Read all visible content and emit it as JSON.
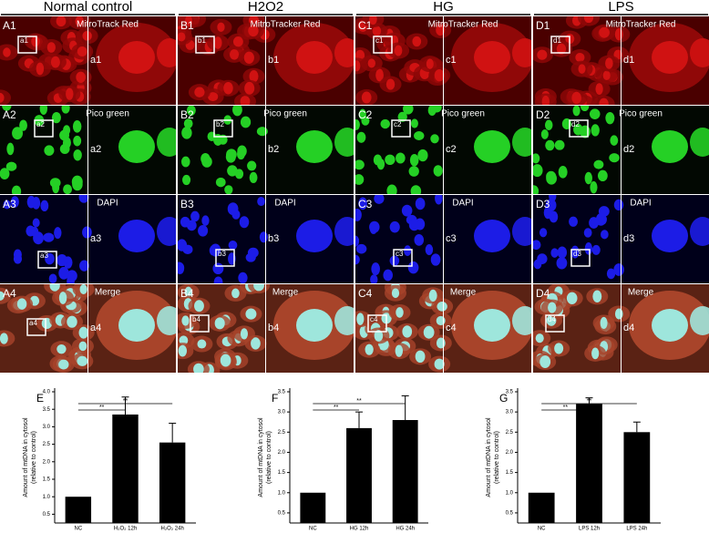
{
  "columns": [
    {
      "title": "Normal control",
      "panels": [
        {
          "label": "A1",
          "stain": "MitroTrack Red",
          "inset": "a1"
        },
        {
          "label": "A2",
          "stain": "Pico green",
          "inset": "a2"
        },
        {
          "label": "A3",
          "stain": "DAPI",
          "inset": "a3"
        },
        {
          "label": "A4",
          "stain": "Merge",
          "inset": "a4"
        }
      ]
    },
    {
      "title": "H2O2",
      "panels": [
        {
          "label": "B1",
          "stain": "MitroTracker Red",
          "inset": "b1"
        },
        {
          "label": "B2",
          "stain": "Pico green",
          "inset": "b2"
        },
        {
          "label": "B3",
          "stain": "DAPI",
          "inset": "b3"
        },
        {
          "label": "B4",
          "stain": "Merge",
          "inset": "b4"
        }
      ]
    },
    {
      "title": "HG",
      "panels": [
        {
          "label": "C1",
          "stain": "MitroTracker Red",
          "inset": "c1"
        },
        {
          "label": "C2",
          "stain": "Pico green",
          "inset": "c2"
        },
        {
          "label": "C3",
          "stain": "DAPI",
          "inset": "c3"
        },
        {
          "label": "C4",
          "stain": "Merge",
          "inset": "c4"
        }
      ]
    },
    {
      "title": "LPS",
      "panels": [
        {
          "label": "D1",
          "stain": "MitroTracker Red",
          "inset": "d1"
        },
        {
          "label": "D2",
          "stain": "Pico green",
          "inset": "d2"
        },
        {
          "label": "D3",
          "stain": "DAPI",
          "inset": "d3"
        },
        {
          "label": "D4",
          "stain": "Merge",
          "inset": "d4"
        }
      ]
    }
  ],
  "chart_data": [
    {
      "type": "bar",
      "title": "E",
      "y_label": [
        "Amount of mtDNA in cytosol",
        "(relative to control)"
      ],
      "categories": [
        "NC",
        "H₂O₂ 12h",
        "H₂O₂ 24h"
      ],
      "series": [
        {
          "color": "#000000",
          "values": [
            1.0,
            3.35,
            2.55
          ],
          "errors": [
            0,
            0.5,
            0.55
          ]
        }
      ],
      "significance": [
        "**",
        "**"
      ],
      "ylim": [
        0.25,
        4.0
      ],
      "yticks": [
        {
          "value": 0.5,
          "label": "0.5"
        },
        {
          "value": 1,
          "label": "1.0"
        },
        {
          "value": 1.5,
          "label": "1.5"
        },
        {
          "value": 2,
          "label": "2.0"
        },
        {
          "value": 2.5,
          "label": "2.5"
        },
        {
          "value": 3,
          "label": "3.0"
        },
        {
          "value": 3.5,
          "label": "3.5"
        },
        {
          "value": 4,
          "label": "4.0"
        }
      ]
    },
    {
      "type": "bar",
      "title": "F",
      "y_label": [
        "Amount of mtDNA in cytosol",
        "(relative to control)"
      ],
      "categories": [
        "NC",
        "HG 12h",
        "HG 24h"
      ],
      "series": [
        {
          "color": "#000000",
          "values": [
            1.0,
            2.6,
            2.8
          ],
          "errors": [
            0,
            0.4,
            0.6
          ]
        }
      ],
      "significance": [
        "**",
        "**"
      ],
      "ylim": [
        0.25,
        3.5
      ],
      "yticks": [
        {
          "value": 0.5,
          "label": "0.5"
        },
        {
          "value": 1,
          "label": "1.0"
        },
        {
          "value": 1.5,
          "label": "1.5"
        },
        {
          "value": 2,
          "label": "2.0"
        },
        {
          "value": 2.5,
          "label": "2.5"
        },
        {
          "value": 3,
          "label": "3.0"
        },
        {
          "value": 3.5,
          "label": "3.5"
        }
      ]
    },
    {
      "type": "bar",
      "title": "G",
      "y_label": [
        "Amount of mtDNA in cytosol",
        "(relative to control)"
      ],
      "categories": [
        "NC",
        "LPS 12h",
        "LPS 24h"
      ],
      "series": [
        {
          "color": "#000000",
          "values": [
            1.0,
            3.2,
            2.5
          ],
          "errors": [
            0,
            0.15,
            0.25
          ]
        }
      ],
      "significance": [
        "**",
        "**"
      ],
      "ylim": [
        0.25,
        3.5
      ],
      "yticks": [
        {
          "value": 0.5,
          "label": "0.5"
        },
        {
          "value": 1,
          "label": "1.0"
        },
        {
          "value": 1.5,
          "label": "1.5"
        },
        {
          "value": 2,
          "label": "2.0"
        },
        {
          "value": 2.5,
          "label": "2.5"
        },
        {
          "value": 3,
          "label": "3.0"
        },
        {
          "value": 3.5,
          "label": "3.5"
        }
      ]
    }
  ]
}
